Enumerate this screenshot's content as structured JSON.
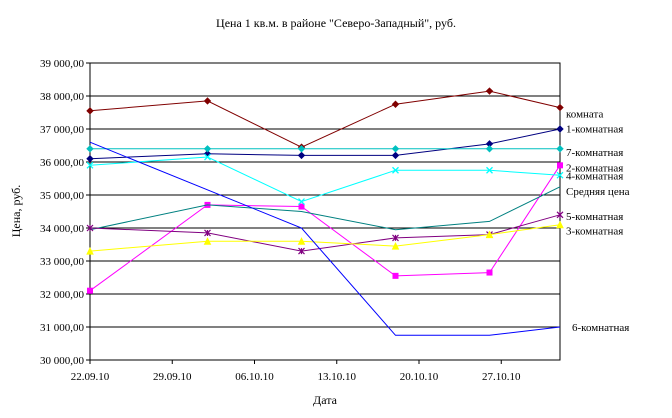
{
  "chart_data": {
    "type": "line",
    "title": "Цена 1 кв.м. в районе \"Северо-Западный\", руб.",
    "xlabel": "Дата",
    "ylabel": "Цена, руб.",
    "ylim": [
      30000,
      39000
    ],
    "ytick_step": 1000,
    "yticks": [
      "30 000,00",
      "31 000,00",
      "32 000,00",
      "33 000,00",
      "34 000,00",
      "35 000,00",
      "36 000,00",
      "37 000,00",
      "38 000,00",
      "39 000,00"
    ],
    "x_range_days": [
      0,
      40
    ],
    "xtick_days": [
      0,
      7,
      14,
      21,
      28,
      35
    ],
    "xticks": [
      "22.09.10",
      "29.09.10",
      "06.10.10",
      "13.10.10",
      "20.10.10",
      "27.10.10"
    ],
    "grid": true,
    "legend": "right",
    "series": [
      {
        "name": "комната",
        "color": "#800000",
        "marker": "diamond",
        "label_y": 37470,
        "x": [
          0,
          10,
          18,
          26,
          34,
          41
        ],
        "y": [
          37550,
          37850,
          36450,
          37750,
          38150,
          37650
        ]
      },
      {
        "name": "1-комнатная",
        "color": "#000080",
        "marker": "diamond",
        "label_y": 37020,
        "x": [
          0,
          10,
          18,
          26,
          34,
          41
        ],
        "y": [
          36100,
          36250,
          36200,
          36200,
          36550,
          37000
        ]
      },
      {
        "name": "7-комнатная",
        "color": "#00c0c0",
        "marker": "diamond",
        "label_y": 36300,
        "x": [
          0,
          10,
          18,
          26,
          34,
          41
        ],
        "y": [
          36400,
          36400,
          36400,
          36400,
          36400,
          36400
        ]
      },
      {
        "name": "2-комнатная",
        "color": "#ff00ff",
        "marker": "square",
        "label_y": 35830,
        "x": [
          0,
          10,
          18,
          26,
          34,
          41
        ],
        "y": [
          32100,
          34700,
          34650,
          32550,
          32650,
          35900
        ]
      },
      {
        "name": "4-комнатная",
        "color": "#00ffff",
        "marker": "x",
        "label_y": 35590,
        "x": [
          0,
          10,
          18,
          26,
          34,
          41
        ],
        "y": [
          35900,
          36150,
          34800,
          35750,
          35750,
          35600
        ]
      },
      {
        "name": "Средняя цена",
        "color": "#008080",
        "marker": "none",
        "label_y": 35120,
        "x": [
          0,
          10,
          18,
          26,
          34,
          41
        ],
        "y": [
          33950,
          34700,
          34500,
          33950,
          34200,
          35250
        ]
      },
      {
        "name": "5-комнатная",
        "color": "#800080",
        "marker": "star",
        "label_y": 34370,
        "x": [
          0,
          10,
          18,
          26,
          34,
          41
        ],
        "y": [
          34000,
          33850,
          33300,
          33700,
          33800,
          34400
        ]
      },
      {
        "name": "3-комнатная",
        "color": "#ffff00",
        "marker": "triangle",
        "label_y": 33920,
        "x": [
          0,
          10,
          18,
          26,
          34,
          41
        ],
        "y": [
          33300,
          33600,
          33600,
          33450,
          33800,
          34100
        ]
      },
      {
        "name": "6-комнатная",
        "color": "#0000ff",
        "marker": "none",
        "label_y": 31000,
        "x": [
          0,
          18,
          26,
          34,
          41
        ],
        "y": [
          36600,
          34000,
          30750,
          30750,
          31000
        ]
      }
    ]
  }
}
